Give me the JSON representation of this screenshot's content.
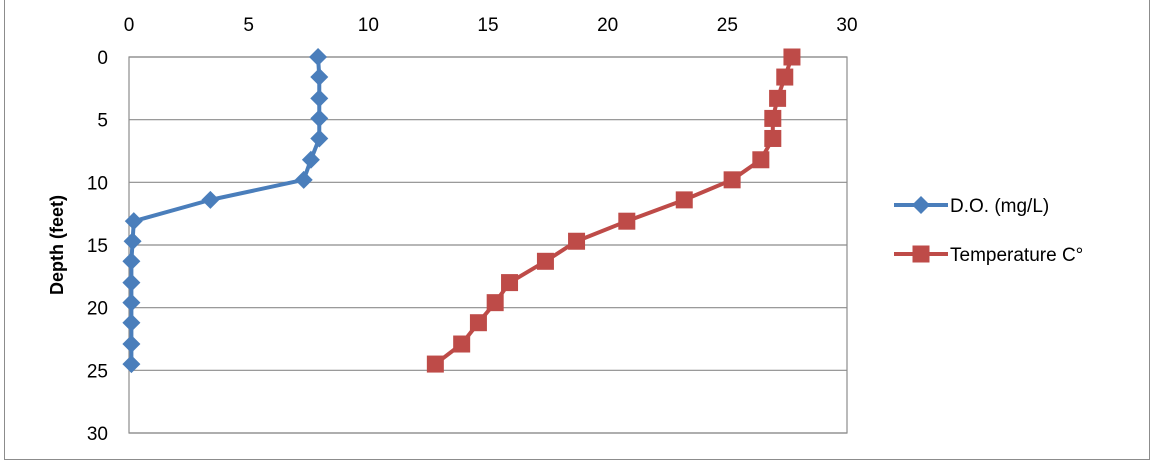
{
  "chart_data": {
    "type": "line",
    "title": "",
    "xlabel": "",
    "ylabel": "Depth (feet)",
    "xlim": [
      0,
      30
    ],
    "ylim": [
      0,
      30
    ],
    "x_axis_position": "top",
    "y_axis_inverted": true,
    "xticks": [
      "0",
      "5",
      "10",
      "15",
      "20",
      "25",
      "30"
    ],
    "yticks": [
      "0",
      "5",
      "10",
      "15",
      "20",
      "25",
      "30"
    ],
    "grid": "horizontal",
    "legend_position": "right",
    "series": [
      {
        "name": "D.O. (mg/L)",
        "color": "#4a7ebb",
        "marker": "diamond",
        "points": [
          {
            "x": 7.9,
            "y": 0
          },
          {
            "x": 7.95,
            "y": 1.6
          },
          {
            "x": 7.95,
            "y": 3.3
          },
          {
            "x": 7.95,
            "y": 4.9
          },
          {
            "x": 7.95,
            "y": 6.5
          },
          {
            "x": 7.6,
            "y": 8.2
          },
          {
            "x": 7.3,
            "y": 9.8
          },
          {
            "x": 3.4,
            "y": 11.4
          },
          {
            "x": 0.2,
            "y": 13.1
          },
          {
            "x": 0.15,
            "y": 14.7
          },
          {
            "x": 0.1,
            "y": 16.3
          },
          {
            "x": 0.1,
            "y": 18.0
          },
          {
            "x": 0.1,
            "y": 19.6
          },
          {
            "x": 0.1,
            "y": 21.2
          },
          {
            "x": 0.1,
            "y": 22.9
          },
          {
            "x": 0.1,
            "y": 24.5
          }
        ]
      },
      {
        "name": "Temperature C°",
        "color": "#be4b48",
        "marker": "square",
        "points": [
          {
            "x": 27.7,
            "y": 0
          },
          {
            "x": 27.4,
            "y": 1.6
          },
          {
            "x": 27.1,
            "y": 3.3
          },
          {
            "x": 26.9,
            "y": 4.9
          },
          {
            "x": 26.9,
            "y": 6.5
          },
          {
            "x": 26.4,
            "y": 8.2
          },
          {
            "x": 25.2,
            "y": 9.8
          },
          {
            "x": 23.2,
            "y": 11.4
          },
          {
            "x": 20.8,
            "y": 13.1
          },
          {
            "x": 18.7,
            "y": 14.7
          },
          {
            "x": 17.4,
            "y": 16.3
          },
          {
            "x": 15.9,
            "y": 18.0
          },
          {
            "x": 15.3,
            "y": 19.6
          },
          {
            "x": 14.6,
            "y": 21.2
          },
          {
            "x": 13.9,
            "y": 22.9
          },
          {
            "x": 12.8,
            "y": 24.5
          }
        ]
      }
    ]
  }
}
